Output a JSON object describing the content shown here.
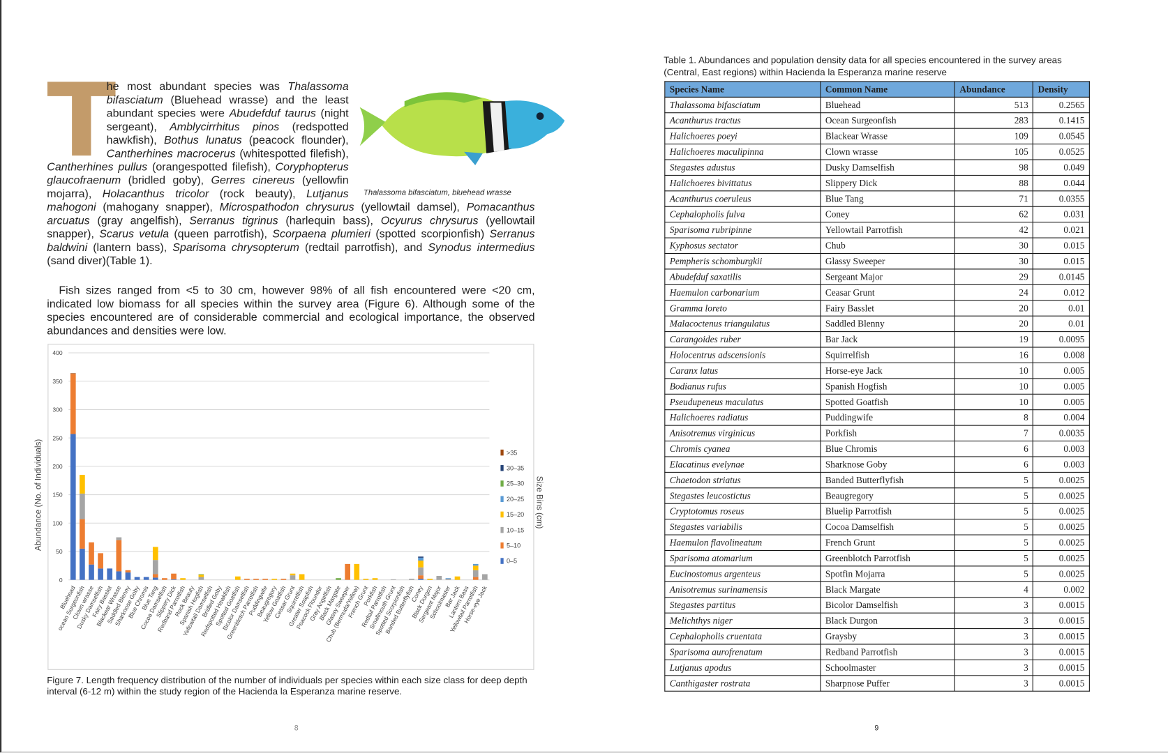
{
  "paragraphs": [
    {
      "drop_cap": "T",
      "runs": [
        "he most abundant species was ",
        "Thalassoma bifasciatum",
        " (Bluehead wrasse) and the least abundant species were ",
        "Abudefduf taurus",
        " (night sergeant), ",
        "Amblycirrhitus pinos",
        " (redspotted hawkfish), ",
        "Bothus lunatus",
        " (peacock flounder), ",
        "Cantherhines macrocerus",
        " (whitespotted filefish), ",
        "Cantherhines pullus",
        " (orangespotted filefish), ",
        "Coryphopterus glaucofraenum",
        " (bridled goby), ",
        "Gerres cinereus",
        " (yellowfin mojarra), ",
        "Holacanthus tricolor",
        " (rock beauty), ",
        "Lutjanus mahogoni",
        " (mahogany snapper), ",
        "Microspathodon chrysurus",
        " (yellowtail damsel), ",
        "Pomacanthus arcuatus",
        " (gray angelfish), ",
        "Serranus tigrinus",
        " (harlequin bass), ",
        "Ocyurus chrysurus",
        " (yellowtail snapper),  ",
        "Scarus vetula",
        " (queen parrotfish), ",
        "Scorpaena plumieri",
        " (spotted scorpionfish) ",
        "Serranus baldwini",
        " (lantern bass), ",
        "Sparisoma chrysopterum",
        " (redtail parrotfish), and ",
        "Synodus intermedius",
        " (sand diver)(Table 1)."
      ]
    },
    {
      "runs": [
        "Fish sizes ranged from <5 to 30 cm, however 98% of all fish encountered were <20 cm, indicated low biomass for all species within the survey area (Figure 6).  Although some of the species encountered are of considerable commercial and ecological importance, the observed abundances and densities were low."
      ]
    }
  ],
  "fish_caption": "Thalassoma bifasciatum, bluehead wrasse",
  "figure_caption": "Figure 7.  Length frequency distribution of the number of individuals per species within each size class for deep depth interval (6-12 m) within the study region of the Hacienda la Esperanza marine reserve.",
  "chart_data": {
    "type": "bar",
    "stacked": true,
    "ylabel": "Abundance (No. of Individuals)",
    "legend_title": "Size Bins (cm)",
    "grid": true,
    "ylim": [
      0,
      400
    ],
    "yticks": [
      0,
      50,
      100,
      150,
      200,
      250,
      300,
      350,
      400
    ],
    "categories": [
      "Bluehead",
      "ocean Surgeonfish",
      "Clown wrasse",
      "Dusky Damselfish",
      "Fairy Basslet",
      "Blackear Wrasse",
      "Saddled Blenny",
      "Sharknose Goby",
      "Blue Chromis",
      "Blue Tang",
      "Cocoa Damselfish",
      "Slippery Dick",
      "Redband Parrotfish",
      "Rock Beauty",
      "Spanish Hogfish",
      "Yellowtail Damselfish",
      "Bridled Goby",
      "Redspotted Hawkfish",
      "Spotted Goatfish",
      "Bicolor Damselfish",
      "Greenblotch Parrotfish",
      "Puddingwife",
      "Beaugregory",
      "Yellow Goatfish",
      "Ceasar Grunt",
      "Squirrelfish",
      "Greater Soapfish",
      "Peacock Flounder",
      "Gray Angelfish",
      "Black Margate",
      "Glassy Sweeper",
      "Chub (Bermuda/Yellow)",
      "French Grunt",
      "Porkfish",
      "Redtail Parrotfish",
      "Smallmouth Grunt",
      "Spotted Scorpionfish",
      "Banded Butterflyfish",
      "Coney",
      "Black Durgon",
      "Sergeant Major",
      "Schoolmaster",
      "Bar Jack",
      "Lantern Bass",
      "Yellowtail Parrotfish",
      "Horse-eye Jack"
    ],
    "series": [
      {
        "name": "0–5",
        "color": "#4472c4",
        "values": [
          257,
          55,
          27,
          20,
          20,
          15,
          13,
          5,
          5,
          4,
          0,
          1,
          0,
          0,
          0,
          0,
          0,
          0,
          0,
          0,
          0,
          0,
          0,
          0,
          0,
          0,
          0,
          0,
          0,
          0,
          0,
          0,
          0,
          0,
          0,
          0,
          0,
          0,
          2,
          0,
          0,
          0,
          0,
          0,
          0,
          0
        ]
      },
      {
        "name": "5–10",
        "color": "#ed7d31",
        "values": [
          106,
          52,
          39,
          27,
          0,
          55,
          4,
          0,
          0,
          6,
          3,
          10,
          0,
          0,
          0,
          0,
          0,
          0,
          0,
          2,
          2,
          2,
          0,
          2,
          0,
          0,
          0,
          0,
          0,
          0,
          28,
          0,
          0,
          0,
          0,
          0,
          0,
          0,
          6,
          0,
          0,
          0,
          0,
          0,
          5,
          0
        ]
      },
      {
        "name": "10–15",
        "color": "#a5a5a5",
        "values": [
          0,
          45,
          0,
          0,
          0,
          5,
          0,
          0,
          0,
          25,
          0,
          0,
          0,
          0,
          5,
          0,
          0,
          0,
          0,
          0,
          0,
          0,
          0,
          0,
          8,
          0,
          0,
          0,
          0,
          0,
          0,
          0,
          0,
          0,
          0,
          1,
          0,
          2,
          14,
          0,
          7,
          2,
          0,
          0,
          12,
          10
        ]
      },
      {
        "name": "15–20",
        "color": "#ffc000",
        "values": [
          0,
          33,
          0,
          0,
          0,
          0,
          0,
          0,
          0,
          23,
          0,
          0,
          3,
          0,
          4,
          0,
          0,
          0,
          6,
          0,
          0,
          0,
          2,
          0,
          3,
          10,
          0,
          0,
          0,
          0,
          0,
          28,
          2,
          3,
          0,
          0,
          0,
          0,
          12,
          2,
          0,
          0,
          6,
          0,
          8,
          0
        ]
      },
      {
        "name": "20–25",
        "color": "#5b9bd5",
        "values": [
          0,
          0,
          0,
          0,
          0,
          0,
          0,
          0,
          0,
          0,
          0,
          0,
          0,
          0,
          0,
          0,
          0,
          0,
          0,
          0,
          0,
          0,
          0,
          0,
          0,
          0,
          0,
          0,
          0,
          0,
          0,
          0,
          0,
          0,
          0,
          0,
          0,
          0,
          5,
          0,
          0,
          1,
          0,
          0,
          3,
          0
        ]
      },
      {
        "name": "25–30",
        "color": "#70ad47",
        "values": [
          0,
          0,
          0,
          0,
          0,
          0,
          0,
          0,
          0,
          0,
          0,
          0,
          0,
          0,
          1,
          0,
          0,
          0,
          0,
          0,
          0,
          0,
          0,
          0,
          0,
          0,
          0,
          0,
          0,
          3,
          0,
          0,
          0,
          0,
          0,
          0,
          0,
          0,
          0,
          0,
          0,
          0,
          0,
          0,
          0,
          0
        ]
      },
      {
        "name": "30–35",
        "color": "#264478",
        "values": [
          0,
          0,
          0,
          0,
          0,
          0,
          0,
          0,
          0,
          0,
          0,
          0,
          0,
          0,
          0,
          0,
          0,
          0,
          0,
          0,
          0,
          0,
          0,
          0,
          0,
          0,
          0,
          0,
          0,
          0,
          0,
          0,
          0,
          0,
          0,
          0,
          0,
          0,
          2,
          0,
          0,
          0,
          0,
          0,
          0,
          0
        ]
      },
      {
        "name": ">35",
        "color": "#9e480e",
        "values": [
          1,
          0,
          0,
          0,
          0,
          0,
          0,
          0,
          0,
          0,
          0,
          0,
          0,
          0,
          0,
          0,
          0,
          0,
          0,
          0,
          0,
          0,
          0,
          0,
          0,
          0,
          0,
          0,
          0,
          0,
          0,
          0,
          0,
          0,
          0,
          0,
          0,
          0,
          0,
          0,
          0,
          0,
          0,
          0,
          0,
          0
        ]
      }
    ]
  },
  "table": {
    "caption": "Table 1.  Abundances and population density data for all species encountered in the survey areas (Central, East regions) within Hacienda la Esperanza marine reserve",
    "header": [
      "Species Name",
      "Common Name",
      "Abundance",
      "Density"
    ],
    "rows": [
      [
        "Thalassoma bifasciatum",
        "Bluehead",
        513,
        0.2565
      ],
      [
        "Acanthurus tractus",
        "Ocean Surgeonfish",
        283,
        0.1415
      ],
      [
        "Halichoeres poeyi",
        "Blackear Wrasse",
        109,
        0.0545
      ],
      [
        "Halichoeres maculipinna",
        "Clown wrasse",
        105,
        0.0525
      ],
      [
        "Stegastes adustus",
        "Dusky Damselfish",
        98,
        0.049
      ],
      [
        "Halichoeres bivittatus",
        "Slippery Dick",
        88,
        0.044
      ],
      [
        "Acanthurus coeruleus",
        "Blue Tang",
        71,
        0.0355
      ],
      [
        "Cephalopholis fulva",
        "Coney",
        62,
        0.031
      ],
      [
        "Sparisoma rubripinne",
        "Yellowtail Parrotfish",
        42,
        0.021
      ],
      [
        "Kyphosus sectator",
        "Chub",
        30,
        0.015
      ],
      [
        "Pempheris schomburgkii",
        "Glassy Sweeper",
        30,
        0.015
      ],
      [
        "Abudefduf saxatilis",
        "Sergeant Major",
        29,
        0.0145
      ],
      [
        "Haemulon carbonarium",
        "Ceasar Grunt",
        24,
        0.012
      ],
      [
        "Gramma loreto",
        "Fairy Basslet",
        20,
        0.01
      ],
      [
        "Malacoctenus triangulatus",
        "Saddled Blenny",
        20,
        0.01
      ],
      [
        "Carangoides ruber",
        "Bar Jack",
        19,
        0.0095
      ],
      [
        "Holocentrus adscensionis",
        "Squirrelfish",
        16,
        0.008
      ],
      [
        "Caranx latus",
        "Horse-eye Jack",
        10,
        0.005
      ],
      [
        "Bodianus rufus",
        "Spanish Hogfish",
        10,
        0.005
      ],
      [
        "Pseudupeneus maculatus",
        "Spotted Goatfish",
        10,
        0.005
      ],
      [
        "Halichoeres radiatus",
        "Puddingwife",
        8,
        0.004
      ],
      [
        "Anisotremus virginicus",
        "Porkfish",
        7,
        0.0035
      ],
      [
        "Chromis cyanea",
        "Blue Chromis",
        6,
        0.003
      ],
      [
        "Elacatinus evelynae",
        "Sharknose Goby",
        6,
        0.003
      ],
      [
        "Chaetodon striatus",
        "Banded Butterflyfish",
        5,
        0.0025
      ],
      [
        "Stegastes leucostictus",
        "Beaugregory",
        5,
        0.0025
      ],
      [
        "Cryptotomus roseus",
        "Bluelip Parrotfish",
        5,
        0.0025
      ],
      [
        "Stegastes variabilis",
        "Cocoa Damselfish",
        5,
        0.0025
      ],
      [
        "Haemulon flavolineatum",
        "French Grunt",
        5,
        0.0025
      ],
      [
        "Sparisoma atomarium",
        "Greenblotch Parrotfish",
        5,
        0.0025
      ],
      [
        "Eucinostomus argenteus",
        "Spotfin Mojarra",
        5,
        0.0025
      ],
      [
        "Anisotremus surinamensis",
        "Black Margate",
        4,
        0.002
      ],
      [
        "Stegastes partitus",
        "Bicolor Damselfish",
        3,
        0.0015
      ],
      [
        "Melichthys niger",
        "Black Durgon",
        3,
        0.0015
      ],
      [
        "Cephalopholis cruentata",
        "Graysby",
        3,
        0.0015
      ],
      [
        "Sparisoma aurofrenatum",
        "Redband Parrotfish",
        3,
        0.0015
      ],
      [
        "Lutjanus apodus",
        "Schoolmaster",
        3,
        0.0015
      ],
      [
        "Canthigaster rostrata",
        "Sharpnose Puffer",
        3,
        0.0015
      ]
    ]
  },
  "page_numbers": [
    "8",
    "9"
  ]
}
